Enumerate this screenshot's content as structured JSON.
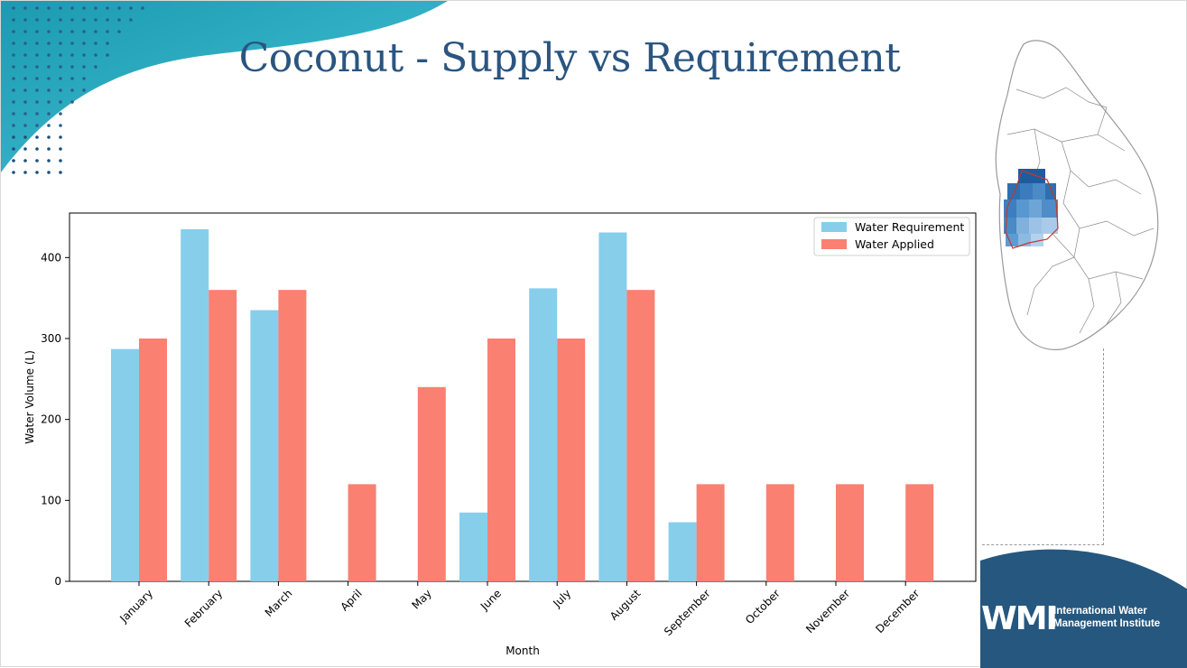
{
  "slide": {
    "title": "Coconut - Supply vs Requirement",
    "brand": {
      "mark": "WMI",
      "line1": "International Water",
      "line2": "Management Institute"
    },
    "colors": {
      "title": "#2a5580",
      "wave": "#2fb3c8",
      "brand_blue": "#25577f"
    }
  },
  "chart_data": {
    "type": "bar",
    "xlabel": "Month",
    "ylabel": "Water Volume (L)",
    "ylim": [
      0,
      455
    ],
    "yticks": [
      0,
      100,
      200,
      300,
      400
    ],
    "legend_position": "top-right",
    "categories": [
      "January",
      "February",
      "March",
      "April",
      "May",
      "June",
      "July",
      "August",
      "September",
      "October",
      "November",
      "December"
    ],
    "series": [
      {
        "name": "Water Requirement",
        "color": "#87ceeb",
        "values": [
          287,
          435,
          335,
          0,
          0,
          85,
          362,
          431,
          73,
          0,
          0,
          0
        ]
      },
      {
        "name": "Water Applied",
        "color": "#fa8072",
        "values": [
          300,
          360,
          360,
          120,
          240,
          300,
          300,
          360,
          120,
          120,
          120,
          120
        ]
      }
    ]
  }
}
